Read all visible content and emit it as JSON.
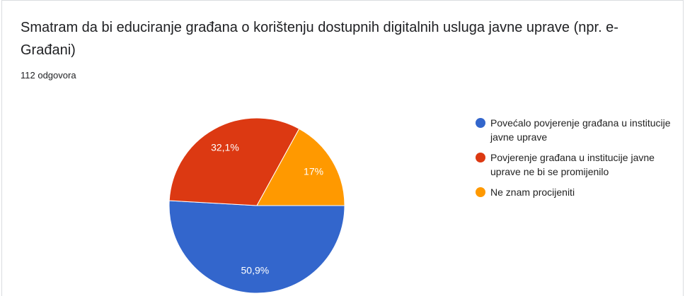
{
  "chart_data": {
    "type": "pie",
    "title": "Smatram da bi educiranje građana o korištenju dostupnih digitalnih usluga javne uprave (npr. e-Građani)",
    "subtitle": "112 odgovora",
    "categories": [
      "Povećalo povjerenje građana u institucije javne uprave",
      "Povjerenje građana u institucije javne uprave ne bi se promijenilo",
      "Ne znam procijeniti"
    ],
    "values": [
      50.9,
      32.1,
      17
    ],
    "value_labels": [
      "50,9%",
      "32,1%",
      "17%"
    ],
    "colors": [
      "#3366cc",
      "#dc3912",
      "#ff9900"
    ]
  }
}
